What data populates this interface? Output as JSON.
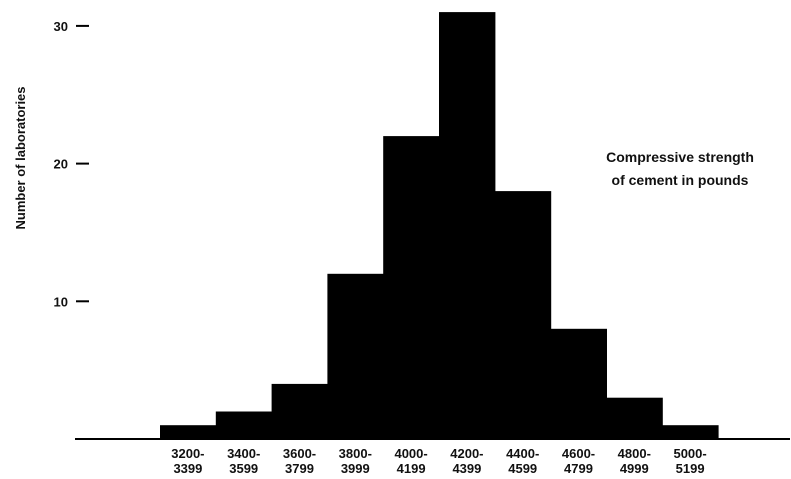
{
  "chart_data": {
    "type": "bar",
    "title": "",
    "xlabel": "",
    "ylabel": "Number of laboratories",
    "annotation": [
      "Compressive strength",
      "of cement in pounds"
    ],
    "categories": [
      [
        "3200-",
        "3399"
      ],
      [
        "3400-",
        "3599"
      ],
      [
        "3600-",
        "3799"
      ],
      [
        "3800-",
        "3999"
      ],
      [
        "4000-",
        "4199"
      ],
      [
        "4200-",
        "4399"
      ],
      [
        "4400-",
        "4599"
      ],
      [
        "4600-",
        "4799"
      ],
      [
        "4800-",
        "4999"
      ],
      [
        "5000-",
        "5199"
      ]
    ],
    "values": [
      1,
      2,
      4,
      12,
      22,
      31,
      18,
      8,
      3,
      1
    ],
    "yticks": [
      10,
      20,
      30
    ],
    "ylim": [
      0,
      31
    ],
    "grid": false,
    "bar_color": "#000000"
  }
}
